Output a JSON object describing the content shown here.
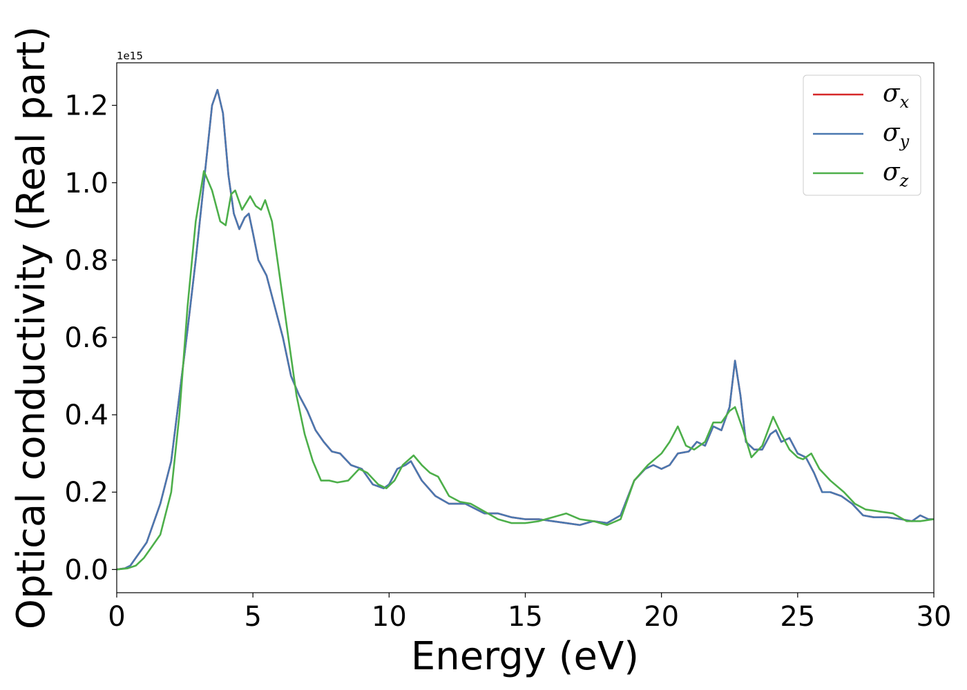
{
  "chart_data": {
    "type": "line",
    "title": "",
    "xlabel": "Energy (eV)",
    "ylabel": "Optical conductivity (Real part)",
    "y_offset_text": "1e15",
    "y_scale": 1000000000000000.0,
    "xlim": [
      0,
      30
    ],
    "ylim": [
      -0.06,
      1.31
    ],
    "x_ticks": [
      0,
      5,
      10,
      15,
      20,
      25,
      30
    ],
    "y_ticks": [
      0.0,
      0.2,
      0.4,
      0.6,
      0.8,
      1.0,
      1.2
    ],
    "x_tick_labels": [
      "0",
      "5",
      "10",
      "15",
      "20",
      "25",
      "30"
    ],
    "y_tick_labels": [
      "0.0",
      "0.2",
      "0.4",
      "0.6",
      "0.8",
      "1.0",
      "1.2"
    ],
    "grid": false,
    "legend_position": "upper-right",
    "series": [
      {
        "name": "σx",
        "symbol": "σ",
        "subscript": "x",
        "color": "#d62728",
        "points": [
          [
            0,
            0
          ],
          [
            0.3,
            0.003
          ],
          [
            0.5,
            0.01
          ],
          [
            0.7,
            0.03
          ],
          [
            0.9,
            0.05
          ],
          [
            1.1,
            0.07
          ],
          [
            1.3,
            0.11
          ],
          [
            1.6,
            0.17
          ],
          [
            2.0,
            0.28
          ],
          [
            2.3,
            0.45
          ],
          [
            2.6,
            0.62
          ],
          [
            2.9,
            0.8
          ],
          [
            3.2,
            1.0
          ],
          [
            3.5,
            1.2
          ],
          [
            3.7,
            1.24
          ],
          [
            3.9,
            1.18
          ],
          [
            4.1,
            1.02
          ],
          [
            4.3,
            0.92
          ],
          [
            4.5,
            0.88
          ],
          [
            4.7,
            0.91
          ],
          [
            4.85,
            0.92
          ],
          [
            5.0,
            0.87
          ],
          [
            5.2,
            0.8
          ],
          [
            5.5,
            0.76
          ],
          [
            5.8,
            0.68
          ],
          [
            6.1,
            0.6
          ],
          [
            6.4,
            0.5
          ],
          [
            6.7,
            0.45
          ],
          [
            7.0,
            0.41
          ],
          [
            7.3,
            0.36
          ],
          [
            7.6,
            0.33
          ],
          [
            7.9,
            0.305
          ],
          [
            8.2,
            0.3
          ],
          [
            8.6,
            0.27
          ],
          [
            9.0,
            0.26
          ],
          [
            9.4,
            0.22
          ],
          [
            9.8,
            0.21
          ],
          [
            10.0,
            0.22
          ],
          [
            10.3,
            0.26
          ],
          [
            10.6,
            0.27
          ],
          [
            10.8,
            0.28
          ],
          [
            11.2,
            0.23
          ],
          [
            11.7,
            0.19
          ],
          [
            12.2,
            0.17
          ],
          [
            12.8,
            0.17
          ],
          [
            13.5,
            0.145
          ],
          [
            14.0,
            0.145
          ],
          [
            14.5,
            0.135
          ],
          [
            15.0,
            0.13
          ],
          [
            15.5,
            0.13
          ],
          [
            16.0,
            0.125
          ],
          [
            16.5,
            0.12
          ],
          [
            17.0,
            0.115
          ],
          [
            17.5,
            0.125
          ],
          [
            18.0,
            0.12
          ],
          [
            18.5,
            0.14
          ],
          [
            19.0,
            0.23
          ],
          [
            19.4,
            0.26
          ],
          [
            19.7,
            0.27
          ],
          [
            20.0,
            0.26
          ],
          [
            20.3,
            0.27
          ],
          [
            20.6,
            0.3
          ],
          [
            21.0,
            0.305
          ],
          [
            21.3,
            0.33
          ],
          [
            21.6,
            0.32
          ],
          [
            21.9,
            0.37
          ],
          [
            22.2,
            0.36
          ],
          [
            22.5,
            0.42
          ],
          [
            22.7,
            0.54
          ],
          [
            22.9,
            0.45
          ],
          [
            23.1,
            0.33
          ],
          [
            23.4,
            0.31
          ],
          [
            23.7,
            0.31
          ],
          [
            24.0,
            0.35
          ],
          [
            24.2,
            0.36
          ],
          [
            24.4,
            0.33
          ],
          [
            24.7,
            0.34
          ],
          [
            25.0,
            0.3
          ],
          [
            25.3,
            0.29
          ],
          [
            25.6,
            0.25
          ],
          [
            25.9,
            0.2
          ],
          [
            26.2,
            0.2
          ],
          [
            26.6,
            0.19
          ],
          [
            27.0,
            0.17
          ],
          [
            27.4,
            0.14
          ],
          [
            27.8,
            0.135
          ],
          [
            28.3,
            0.135
          ],
          [
            28.8,
            0.13
          ],
          [
            29.2,
            0.125
          ],
          [
            29.5,
            0.14
          ],
          [
            29.8,
            0.13
          ],
          [
            30.0,
            0.13
          ]
        ]
      },
      {
        "name": "σy",
        "symbol": "σ",
        "subscript": "y",
        "color": "#4a78b0",
        "points": [
          [
            0,
            0
          ],
          [
            0.3,
            0.003
          ],
          [
            0.5,
            0.01
          ],
          [
            0.7,
            0.03
          ],
          [
            0.9,
            0.05
          ],
          [
            1.1,
            0.07
          ],
          [
            1.3,
            0.11
          ],
          [
            1.6,
            0.17
          ],
          [
            2.0,
            0.28
          ],
          [
            2.3,
            0.45
          ],
          [
            2.6,
            0.62
          ],
          [
            2.9,
            0.8
          ],
          [
            3.2,
            1.0
          ],
          [
            3.5,
            1.2
          ],
          [
            3.7,
            1.24
          ],
          [
            3.9,
            1.18
          ],
          [
            4.1,
            1.02
          ],
          [
            4.3,
            0.92
          ],
          [
            4.5,
            0.88
          ],
          [
            4.7,
            0.91
          ],
          [
            4.85,
            0.92
          ],
          [
            5.0,
            0.87
          ],
          [
            5.2,
            0.8
          ],
          [
            5.5,
            0.76
          ],
          [
            5.8,
            0.68
          ],
          [
            6.1,
            0.6
          ],
          [
            6.4,
            0.5
          ],
          [
            6.7,
            0.45
          ],
          [
            7.0,
            0.41
          ],
          [
            7.3,
            0.36
          ],
          [
            7.6,
            0.33
          ],
          [
            7.9,
            0.305
          ],
          [
            8.2,
            0.3
          ],
          [
            8.6,
            0.27
          ],
          [
            9.0,
            0.26
          ],
          [
            9.4,
            0.22
          ],
          [
            9.8,
            0.21
          ],
          [
            10.0,
            0.22
          ],
          [
            10.3,
            0.26
          ],
          [
            10.6,
            0.27
          ],
          [
            10.8,
            0.28
          ],
          [
            11.2,
            0.23
          ],
          [
            11.7,
            0.19
          ],
          [
            12.2,
            0.17
          ],
          [
            12.8,
            0.17
          ],
          [
            13.5,
            0.145
          ],
          [
            14.0,
            0.145
          ],
          [
            14.5,
            0.135
          ],
          [
            15.0,
            0.13
          ],
          [
            15.5,
            0.13
          ],
          [
            16.0,
            0.125
          ],
          [
            16.5,
            0.12
          ],
          [
            17.0,
            0.115
          ],
          [
            17.5,
            0.125
          ],
          [
            18.0,
            0.12
          ],
          [
            18.5,
            0.14
          ],
          [
            19.0,
            0.23
          ],
          [
            19.4,
            0.26
          ],
          [
            19.7,
            0.27
          ],
          [
            20.0,
            0.26
          ],
          [
            20.3,
            0.27
          ],
          [
            20.6,
            0.3
          ],
          [
            21.0,
            0.305
          ],
          [
            21.3,
            0.33
          ],
          [
            21.6,
            0.32
          ],
          [
            21.9,
            0.37
          ],
          [
            22.2,
            0.36
          ],
          [
            22.5,
            0.42
          ],
          [
            22.7,
            0.54
          ],
          [
            22.9,
            0.45
          ],
          [
            23.1,
            0.33
          ],
          [
            23.4,
            0.31
          ],
          [
            23.7,
            0.31
          ],
          [
            24.0,
            0.35
          ],
          [
            24.2,
            0.36
          ],
          [
            24.4,
            0.33
          ],
          [
            24.7,
            0.34
          ],
          [
            25.0,
            0.3
          ],
          [
            25.3,
            0.29
          ],
          [
            25.6,
            0.25
          ],
          [
            25.9,
            0.2
          ],
          [
            26.2,
            0.2
          ],
          [
            26.6,
            0.19
          ],
          [
            27.0,
            0.17
          ],
          [
            27.4,
            0.14
          ],
          [
            27.8,
            0.135
          ],
          [
            28.3,
            0.135
          ],
          [
            28.8,
            0.13
          ],
          [
            29.2,
            0.125
          ],
          [
            29.5,
            0.14
          ],
          [
            29.8,
            0.13
          ],
          [
            30.0,
            0.13
          ]
        ]
      },
      {
        "name": "σz",
        "symbol": "σ",
        "subscript": "z",
        "color": "#4daf4a",
        "points": [
          [
            0,
            0
          ],
          [
            0.4,
            0.003
          ],
          [
            0.7,
            0.01
          ],
          [
            1.0,
            0.03
          ],
          [
            1.3,
            0.06
          ],
          [
            1.6,
            0.09
          ],
          [
            2.0,
            0.2
          ],
          [
            2.3,
            0.4
          ],
          [
            2.6,
            0.68
          ],
          [
            2.9,
            0.9
          ],
          [
            3.2,
            1.03
          ],
          [
            3.5,
            0.98
          ],
          [
            3.8,
            0.9
          ],
          [
            4.0,
            0.89
          ],
          [
            4.2,
            0.97
          ],
          [
            4.35,
            0.98
          ],
          [
            4.6,
            0.93
          ],
          [
            4.9,
            0.965
          ],
          [
            5.1,
            0.94
          ],
          [
            5.3,
            0.93
          ],
          [
            5.45,
            0.955
          ],
          [
            5.7,
            0.9
          ],
          [
            6.0,
            0.75
          ],
          [
            6.3,
            0.6
          ],
          [
            6.6,
            0.45
          ],
          [
            6.9,
            0.35
          ],
          [
            7.2,
            0.28
          ],
          [
            7.5,
            0.23
          ],
          [
            7.8,
            0.23
          ],
          [
            8.1,
            0.225
          ],
          [
            8.5,
            0.23
          ],
          [
            8.9,
            0.26
          ],
          [
            9.2,
            0.25
          ],
          [
            9.6,
            0.22
          ],
          [
            9.9,
            0.21
          ],
          [
            10.2,
            0.23
          ],
          [
            10.5,
            0.27
          ],
          [
            10.9,
            0.295
          ],
          [
            11.2,
            0.27
          ],
          [
            11.5,
            0.25
          ],
          [
            11.8,
            0.24
          ],
          [
            12.2,
            0.19
          ],
          [
            12.6,
            0.175
          ],
          [
            13.0,
            0.17
          ],
          [
            13.5,
            0.15
          ],
          [
            14.0,
            0.13
          ],
          [
            14.5,
            0.12
          ],
          [
            15.0,
            0.12
          ],
          [
            15.5,
            0.125
          ],
          [
            16.0,
            0.135
          ],
          [
            16.5,
            0.145
          ],
          [
            17.0,
            0.13
          ],
          [
            17.5,
            0.125
          ],
          [
            18.0,
            0.115
          ],
          [
            18.5,
            0.13
          ],
          [
            19.0,
            0.23
          ],
          [
            19.5,
            0.27
          ],
          [
            20.0,
            0.3
          ],
          [
            20.3,
            0.33
          ],
          [
            20.6,
            0.37
          ],
          [
            20.9,
            0.32
          ],
          [
            21.2,
            0.31
          ],
          [
            21.6,
            0.33
          ],
          [
            21.9,
            0.38
          ],
          [
            22.2,
            0.38
          ],
          [
            22.5,
            0.41
          ],
          [
            22.7,
            0.42
          ],
          [
            23.0,
            0.36
          ],
          [
            23.3,
            0.29
          ],
          [
            23.7,
            0.32
          ],
          [
            24.1,
            0.395
          ],
          [
            24.4,
            0.35
          ],
          [
            24.7,
            0.31
          ],
          [
            25.0,
            0.29
          ],
          [
            25.2,
            0.285
          ],
          [
            25.5,
            0.3
          ],
          [
            25.8,
            0.26
          ],
          [
            26.2,
            0.23
          ],
          [
            26.7,
            0.2
          ],
          [
            27.1,
            0.17
          ],
          [
            27.5,
            0.155
          ],
          [
            28.0,
            0.15
          ],
          [
            28.5,
            0.145
          ],
          [
            29.0,
            0.125
          ],
          [
            29.5,
            0.125
          ],
          [
            30.0,
            0.13
          ]
        ]
      }
    ]
  }
}
